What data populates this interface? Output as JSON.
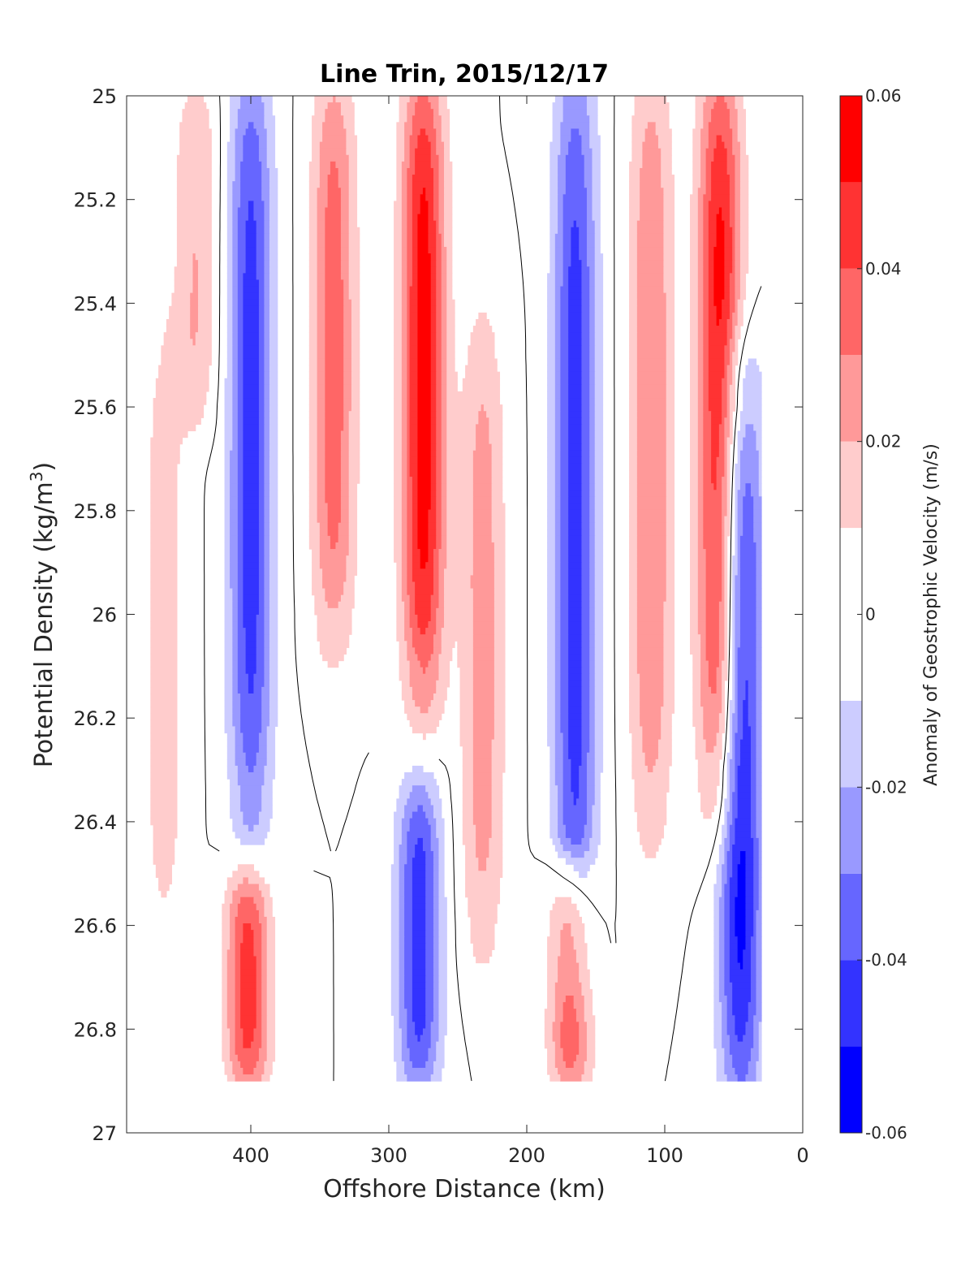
{
  "chart_data": {
    "type": "heatmap",
    "subtype": "filled-contour section",
    "title": "Line Trin, 2015/12/17",
    "xlabel": "Offshore Distance (km)",
    "ylabel": "Potential Density (kg/m³)",
    "ylabel_base": "Potential Density (kg/m",
    "ylabel_sup": "3",
    "ylabel_end": ")",
    "x_axis": {
      "range": [
        490,
        0
      ],
      "reversed": true,
      "ticks": [
        400,
        300,
        200,
        100,
        0
      ],
      "tick_labels": [
        "400",
        "300",
        "200",
        "100",
        "0"
      ]
    },
    "y_axis": {
      "range": [
        25,
        27
      ],
      "reversed": true,
      "ticks": [
        25,
        25.2,
        25.4,
        25.6,
        25.8,
        26,
        26.2,
        26.4,
        26.6,
        26.8,
        27
      ],
      "tick_labels": [
        "25",
        "25.2",
        "25.4",
        "25.6",
        "25.8",
        "26",
        "26.2",
        "26.4",
        "26.6",
        "26.8",
        "27"
      ]
    },
    "colorbar": {
      "label": "Anomaly of Geostrophic Velocity (m/s)",
      "range": [
        -0.06,
        0.06
      ],
      "levels": [
        -0.06,
        -0.05,
        -0.04,
        -0.03,
        -0.02,
        -0.01,
        0.01,
        0.02,
        0.03,
        0.04,
        0.05,
        0.06
      ],
      "ticks": [
        0.06,
        0.04,
        0.02,
        0,
        -0.02,
        -0.04,
        -0.06
      ],
      "tick_labels": [
        "0.06",
        "0.04",
        "0.02",
        "0",
        "-0.02",
        "-0.04",
        "-0.06"
      ],
      "colors": [
        "#0000ff",
        "#3333ff",
        "#6666ff",
        "#9999ff",
        "#ccccff",
        "#ffffff",
        "#ffcccc",
        "#ff9999",
        "#ff6666",
        "#ff3333",
        "#ff0000"
      ]
    },
    "data_extent": {
      "x": [
        490,
        30
      ],
      "y": [
        25,
        26.9
      ]
    },
    "cores": [
      {
        "x": 463,
        "y_top": 25.5,
        "y_bottom": 26.58,
        "peak": 0.015
      },
      {
        "x": 440,
        "y_top": 25.0,
        "y_bottom": 25.6,
        "peak": 0.02
      },
      {
        "x": 400,
        "y_top": 25.0,
        "y_bottom": 26.35,
        "peak": -0.045
      },
      {
        "x": 402,
        "y_top": 26.5,
        "y_bottom": 26.9,
        "peak": 0.045
      },
      {
        "x": 340,
        "y_top": 25.0,
        "y_bottom": 26.0,
        "peak": 0.035
      },
      {
        "x": 275,
        "y_top": 25.0,
        "y_bottom": 26.1,
        "peak": 0.055
      },
      {
        "x": 278,
        "y_top": 26.35,
        "y_bottom": 26.9,
        "peak": -0.045
      },
      {
        "x": 232,
        "y_top": 25.5,
        "y_bottom": 26.6,
        "peak": 0.025
      },
      {
        "x": 165,
        "y_top": 25.0,
        "y_bottom": 26.6,
        "peak": -0.045
      },
      {
        "x": 168,
        "y_top": 26.5,
        "y_bottom": 26.9,
        "peak": 0.045
      },
      {
        "x": 110,
        "y_top": 25.0,
        "y_bottom": 26.35,
        "peak": 0.03
      },
      {
        "x": 60,
        "y_top": 25.0,
        "y_bottom": 26.3,
        "peak": 0.055
      },
      {
        "x": 45,
        "y_top": 25.6,
        "y_bottom": 26.9,
        "peak": -0.055
      }
    ]
  }
}
